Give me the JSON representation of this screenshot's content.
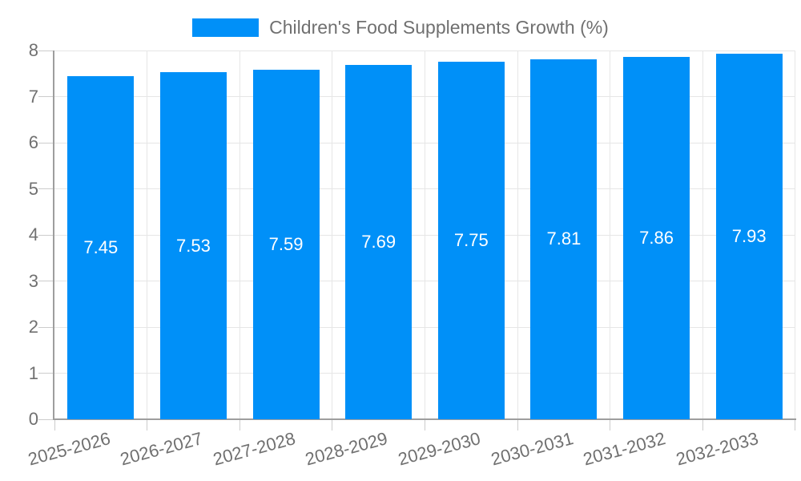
{
  "legend": {
    "label": "Children's Food Supplements Growth (%)"
  },
  "colors": {
    "bar": "#0090F8",
    "text": "#707070",
    "bar_label_text": "#ffffff",
    "axis_line": "#9e9e9e",
    "gridline": "#e6e6e6",
    "tick": "#cccccc",
    "background": "#ffffff"
  },
  "chart_data": {
    "type": "bar",
    "title": "Children's Food Supplements Growth (%)",
    "categories": [
      "2025-2026",
      "2026-2027",
      "2027-2028",
      "2028-2029",
      "2029-2030",
      "2030-2031",
      "2031-2032",
      "2032-2033"
    ],
    "values": [
      7.45,
      7.53,
      7.59,
      7.69,
      7.75,
      7.81,
      7.86,
      7.93
    ],
    "value_labels": [
      "7.45",
      "7.53",
      "7.59",
      "7.69",
      "7.75",
      "7.81",
      "7.86",
      "7.93"
    ],
    "ytick_labels": [
      "0",
      "1",
      "2",
      "3",
      "4",
      "5",
      "6",
      "7",
      "8"
    ],
    "xlabel": "",
    "ylabel": "",
    "ylim": [
      0,
      8
    ],
    "ytick_step": 1,
    "grid": true,
    "legend_position": "top",
    "bar_value_labels": "inside-center",
    "xlabel_rotation_deg": -15
  }
}
